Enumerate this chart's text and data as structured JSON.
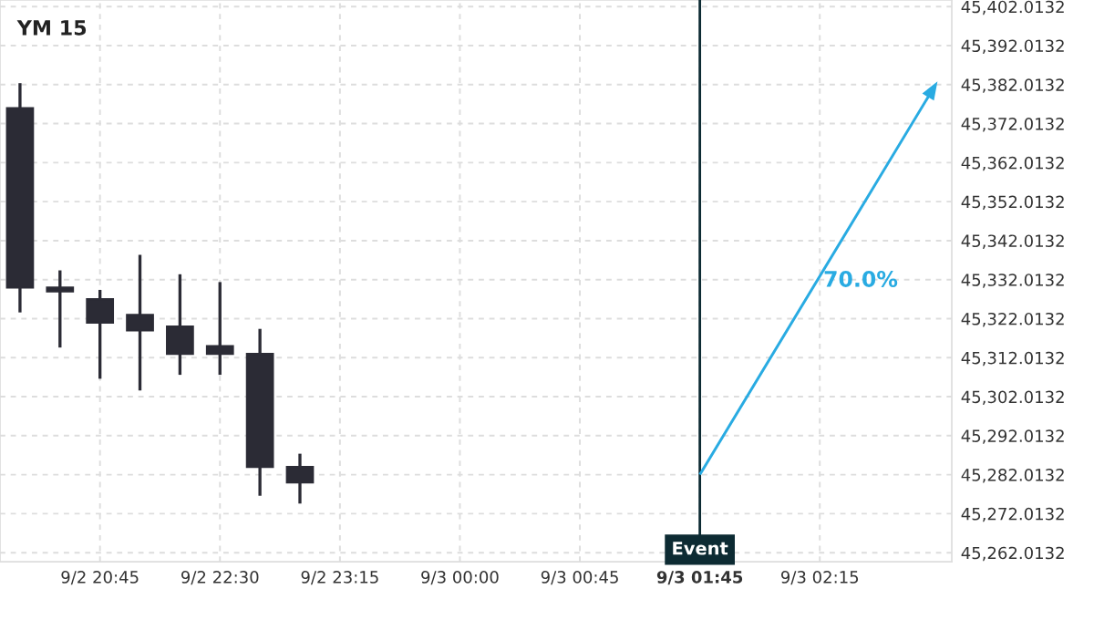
{
  "chart_data": {
    "type": "candlestick",
    "title": "YM 15",
    "categories": [
      null,
      null,
      "9/2 20:45",
      null,
      null,
      "9/2 22:30",
      null,
      null,
      "9/2 23:15",
      null,
      null,
      "9/3 00:00",
      null,
      null,
      "9/3 00:45",
      null,
      null,
      "9/3 01:45",
      null,
      null,
      "9/3 02:15",
      null,
      null,
      null
    ],
    "series": [
      {
        "color": "#2b2b35",
        "ohlc": [
          [
            45376,
            45382,
            45324,
            45330
          ],
          [
            45330,
            45334,
            45315,
            45329
          ],
          [
            45327,
            45329,
            45307,
            45321
          ],
          [
            45323,
            45338,
            45304,
            45319
          ],
          [
            45320,
            45333,
            45308,
            45313
          ],
          [
            45315,
            45331,
            45308,
            45313
          ],
          [
            45313,
            45319,
            45277,
            45284
          ],
          [
            45284,
            45287,
            45275,
            45280
          ],
          null,
          null,
          null,
          null,
          null,
          null,
          null,
          null,
          null,
          null,
          null,
          null,
          null,
          null,
          null,
          null
        ]
      }
    ],
    "annotations": [
      "70.0%"
    ],
    "ref_lines": [
      {
        "axis": "x",
        "value": "9/3 01:45",
        "label": "Event",
        "color": "#0d2b33"
      }
    ],
    "ylim": [
      45259.7,
      45403.7
    ],
    "yticks": [
      {
        "value": 45262.0132,
        "label": "45,262.0132"
      },
      {
        "value": 45272.0132,
        "label": "45,272.0132"
      },
      {
        "value": 45282.0132,
        "label": "45,282.0132"
      },
      {
        "value": 45292.0132,
        "label": "45,292.0132"
      },
      {
        "value": 45302.0132,
        "label": "45,302.0132"
      },
      {
        "value": 45312.0132,
        "label": "45,312.0132"
      },
      {
        "value": 45322.0132,
        "label": "45,322.0132"
      },
      {
        "value": 45332.0132,
        "label": "45,332.0132"
      },
      {
        "value": 45342.0132,
        "label": "45,342.0132"
      },
      {
        "value": 45352.0132,
        "label": "45,352.0132"
      },
      {
        "value": 45362.0132,
        "label": "45,362.0132"
      },
      {
        "value": 45372.0132,
        "label": "45,372.0132"
      },
      {
        "value": 45382.0132,
        "label": "45,382.0132"
      },
      {
        "value": 45392.0132,
        "label": "45,392.0132"
      },
      {
        "value": 45402.0132,
        "label": "45,402.0132"
      }
    ],
    "grid": true
  }
}
